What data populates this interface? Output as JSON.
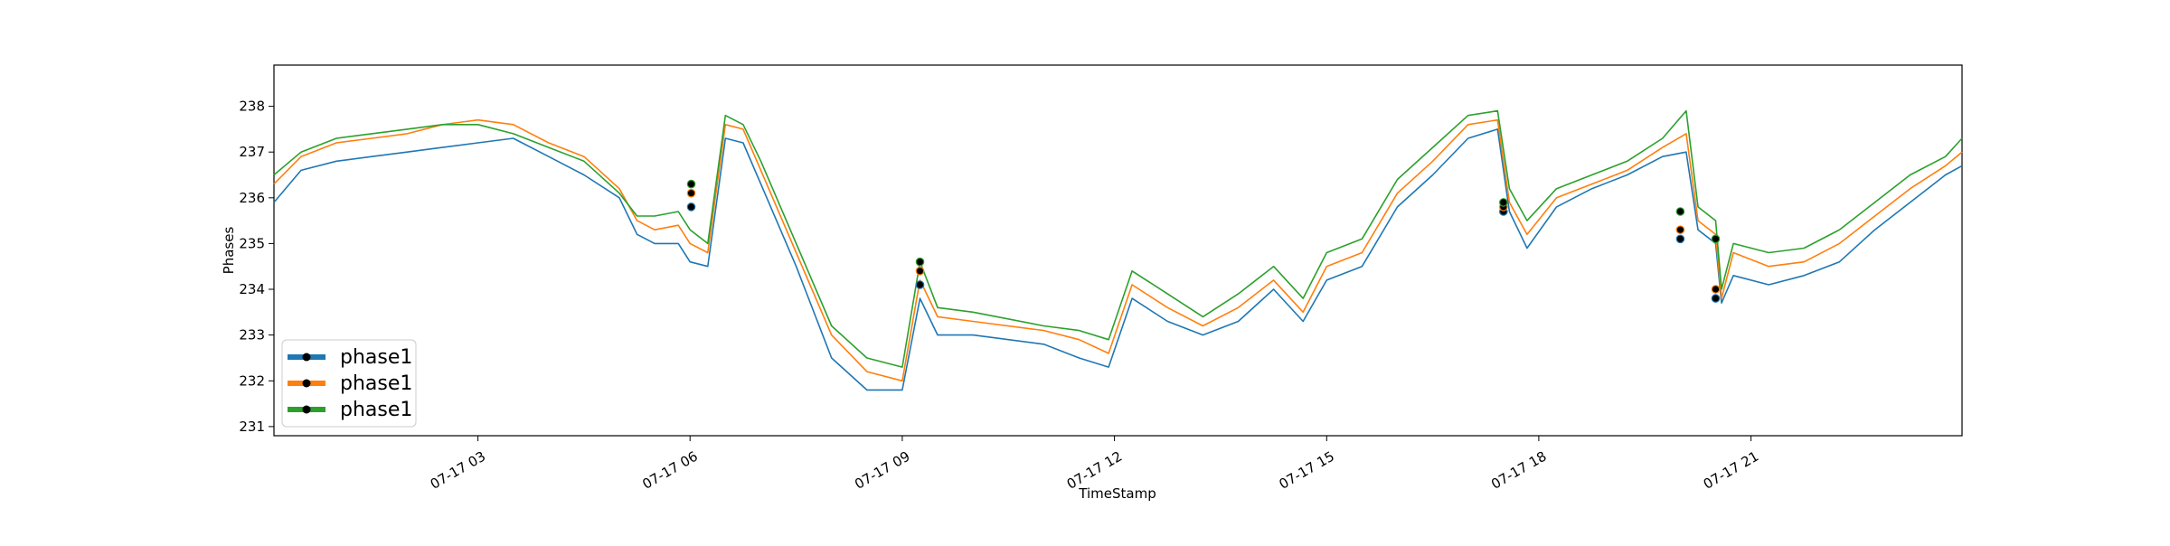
{
  "chart_data": {
    "type": "line",
    "title": "",
    "xlabel": "TimeStamp",
    "ylabel": "Phases",
    "grid": false,
    "legend_position": "lower-left",
    "xlim": [
      "07-17 00:07",
      "07-17 23:59"
    ],
    "ylim": [
      230.8,
      238.9
    ],
    "x_ticks": [
      {
        "t": "07-17 03:00",
        "label": "07-17 03"
      },
      {
        "t": "07-17 06:00",
        "label": "07-17 06"
      },
      {
        "t": "07-17 09:00",
        "label": "07-17 09"
      },
      {
        "t": "07-17 12:00",
        "label": "07-17 12"
      },
      {
        "t": "07-17 15:00",
        "label": "07-17 15"
      },
      {
        "t": "07-17 18:00",
        "label": "07-17 18"
      },
      {
        "t": "07-17 21:00",
        "label": "07-17 21"
      }
    ],
    "y_ticks": [
      231,
      232,
      233,
      234,
      235,
      236,
      237,
      238
    ],
    "x": [
      "07-17 00:07",
      "07-17 00:30",
      "07-17 01:00",
      "07-17 01:30",
      "07-17 02:00",
      "07-17 02:30",
      "07-17 03:00",
      "07-17 03:30",
      "07-17 04:00",
      "07-17 04:30",
      "07-17 05:00",
      "07-17 05:15",
      "07-17 05:30",
      "07-17 05:50",
      "07-17 06:00",
      "07-17 06:15",
      "07-17 06:30",
      "07-17 06:45",
      "07-17 07:00",
      "07-17 07:30",
      "07-17 08:00",
      "07-17 08:30",
      "07-17 09:00",
      "07-17 09:15",
      "07-17 09:30",
      "07-17 10:00",
      "07-17 11:00",
      "07-17 11:30",
      "07-17 11:55",
      "07-17 12:15",
      "07-17 12:45",
      "07-17 13:15",
      "07-17 13:45",
      "07-17 14:15",
      "07-17 14:40",
      "07-17 15:00",
      "07-17 15:30",
      "07-17 16:00",
      "07-17 16:30",
      "07-17 17:00",
      "07-17 17:25",
      "07-17 17:35",
      "07-17 17:50",
      "07-17 18:15",
      "07-17 18:45",
      "07-17 19:15",
      "07-17 19:45",
      "07-17 20:05",
      "07-17 20:15",
      "07-17 20:30",
      "07-17 20:35",
      "07-17 20:45",
      "07-17 21:15",
      "07-17 21:45",
      "07-17 22:15",
      "07-17 22:45",
      "07-17 23:15",
      "07-17 23:45",
      "07-17 23:59"
    ],
    "series": [
      {
        "name": "phase1",
        "color": "#1f77b4",
        "values": [
          235.9,
          236.6,
          236.8,
          236.9,
          237.0,
          237.1,
          237.2,
          237.3,
          236.9,
          236.5,
          236.0,
          235.2,
          235.0,
          235.0,
          234.6,
          234.5,
          237.3,
          237.2,
          236.3,
          234.5,
          232.5,
          231.8,
          231.8,
          233.8,
          233.0,
          233.0,
          232.8,
          232.5,
          232.3,
          233.8,
          233.3,
          233.0,
          233.3,
          234.0,
          233.3,
          234.2,
          234.5,
          235.8,
          236.5,
          237.3,
          237.5,
          235.7,
          234.9,
          235.8,
          236.2,
          236.5,
          236.9,
          237.0,
          235.3,
          235.0,
          233.7,
          234.3,
          234.1,
          234.3,
          234.6,
          235.3,
          235.9,
          236.5,
          236.7
        ]
      },
      {
        "name": "phase1",
        "color": "#ff7f0e",
        "values": [
          236.3,
          236.9,
          237.2,
          237.3,
          237.4,
          237.6,
          237.7,
          237.6,
          237.2,
          236.9,
          236.2,
          235.5,
          235.3,
          235.4,
          235.0,
          234.8,
          237.6,
          237.5,
          236.6,
          234.8,
          233.0,
          232.2,
          232.0,
          234.2,
          233.4,
          233.3,
          233.1,
          232.9,
          232.6,
          234.1,
          233.6,
          233.2,
          233.6,
          234.2,
          233.5,
          234.5,
          234.8,
          236.1,
          236.8,
          237.6,
          237.7,
          235.9,
          235.2,
          236.0,
          236.3,
          236.6,
          237.1,
          237.4,
          235.5,
          235.2,
          233.8,
          234.8,
          234.5,
          234.6,
          235.0,
          235.6,
          236.2,
          236.7,
          237.0
        ]
      },
      {
        "name": "phase1",
        "color": "#2ca02c",
        "values": [
          236.5,
          237.0,
          237.3,
          237.4,
          237.5,
          237.6,
          237.6,
          237.4,
          237.1,
          236.8,
          236.1,
          235.6,
          235.6,
          235.7,
          235.3,
          235.0,
          237.8,
          237.6,
          236.8,
          235.0,
          233.2,
          232.5,
          232.3,
          234.6,
          233.6,
          233.5,
          233.2,
          233.1,
          232.9,
          234.4,
          233.9,
          233.4,
          233.9,
          234.5,
          233.8,
          234.8,
          235.1,
          236.4,
          237.1,
          237.8,
          237.9,
          236.2,
          235.5,
          236.2,
          236.5,
          236.8,
          237.3,
          237.9,
          235.8,
          235.5,
          234.0,
          235.0,
          234.8,
          234.9,
          235.3,
          235.9,
          236.5,
          236.9,
          237.3
        ]
      }
    ],
    "markers": [
      {
        "x": "07-17 06:01",
        "values": [
          235.8,
          236.1,
          236.3
        ]
      },
      {
        "x": "07-17 09:15",
        "values": [
          234.1,
          234.4,
          234.6
        ]
      },
      {
        "x": "07-17 17:30",
        "values": [
          235.7,
          235.8,
          235.9
        ]
      },
      {
        "x": "07-17 20:00",
        "values": [
          235.1,
          235.3,
          235.7
        ]
      },
      {
        "x": "07-17 20:30",
        "values": [
          233.8,
          234.0,
          235.1
        ]
      }
    ]
  }
}
